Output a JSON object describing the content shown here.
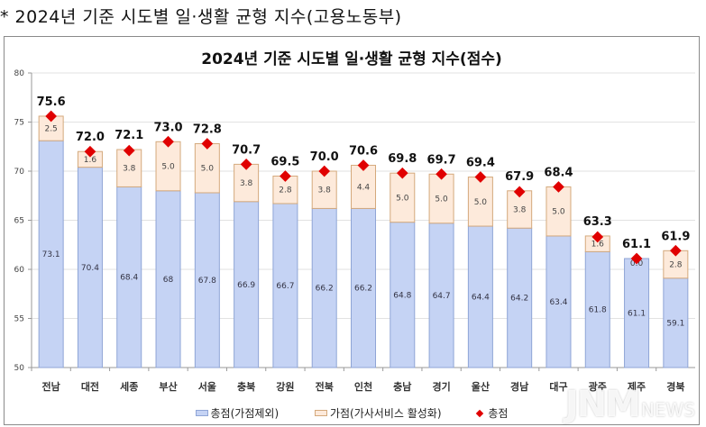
{
  "caption": "* 2024년 기준 시도별 일·생활 균형 지수(고용노동부)",
  "watermark": {
    "big": "JNM",
    "small": "NEWS"
  },
  "colors": {
    "base": "#c5d3f4",
    "base_border": "#8fa5d6",
    "bonus": "#fdeadb",
    "bonus_border": "#d4a97c",
    "total_marker": "#e00000",
    "grid": "#e2e2e2"
  },
  "chart_data": {
    "type": "bar",
    "stacked": true,
    "title": "2024년 기준 시도별 일·생활 균형 지수(점수)",
    "xlabel": "",
    "ylabel": "",
    "ylim": [
      50,
      80
    ],
    "yticks": [
      50,
      55,
      60,
      65,
      70,
      75,
      80
    ],
    "grid": true,
    "legend_position": "bottom",
    "categories": [
      "전남",
      "대전",
      "세종",
      "부산",
      "서울",
      "충북",
      "강원",
      "전북",
      "인천",
      "충남",
      "경기",
      "울산",
      "경남",
      "대구",
      "광주",
      "제주",
      "경북"
    ],
    "series": [
      {
        "name": "총점(가점제외)",
        "values": [
          73.1,
          70.4,
          68.4,
          68,
          67.8,
          66.9,
          66.7,
          66.2,
          66.2,
          64.8,
          64.7,
          64.4,
          64.2,
          63.4,
          61.8,
          61.1,
          59.1
        ],
        "labels": [
          "73.1",
          "70.4",
          "68.4",
          "68",
          "67.8",
          "66.9",
          "66.7",
          "66.2",
          "66.2",
          "64.8",
          "64.7",
          "64.4",
          "64.2",
          "63.4",
          "61.8",
          "61.1",
          "59.1"
        ]
      },
      {
        "name": "가점(가사서비스 활성화)",
        "values": [
          2.5,
          1.6,
          3.8,
          5.0,
          5.0,
          3.8,
          2.8,
          3.8,
          4.4,
          5.0,
          5.0,
          5.0,
          3.8,
          5.0,
          1.6,
          0.0,
          2.8
        ],
        "labels": [
          "2.5",
          "1.6",
          "3.8",
          "5.0",
          "5.0",
          "3.8",
          "2.8",
          "3.8",
          "4.4",
          "5.0",
          "5.0",
          "5.0",
          "3.8",
          "5.0",
          "1.6",
          "0.0",
          "2.8"
        ]
      },
      {
        "name": "총점",
        "type": "marker",
        "values": [
          75.6,
          72.0,
          72.1,
          73.0,
          72.8,
          70.7,
          69.5,
          70.0,
          70.6,
          69.8,
          69.7,
          69.4,
          67.9,
          68.4,
          63.3,
          61.1,
          61.9
        ],
        "labels": [
          "75.6",
          "72.0",
          "72.1",
          "73.0",
          "72.8",
          "70.7",
          "69.5",
          "70.0",
          "70.6",
          "69.8",
          "69.7",
          "69.4",
          "67.9",
          "68.4",
          "63.3",
          "61.1",
          "61.9"
        ]
      }
    ]
  },
  "legend": [
    {
      "label": "총점(가점제외)",
      "kind": "base"
    },
    {
      "label": "가점(가사서비스 활성화)",
      "kind": "bonus"
    },
    {
      "label": "총점",
      "kind": "marker"
    }
  ]
}
